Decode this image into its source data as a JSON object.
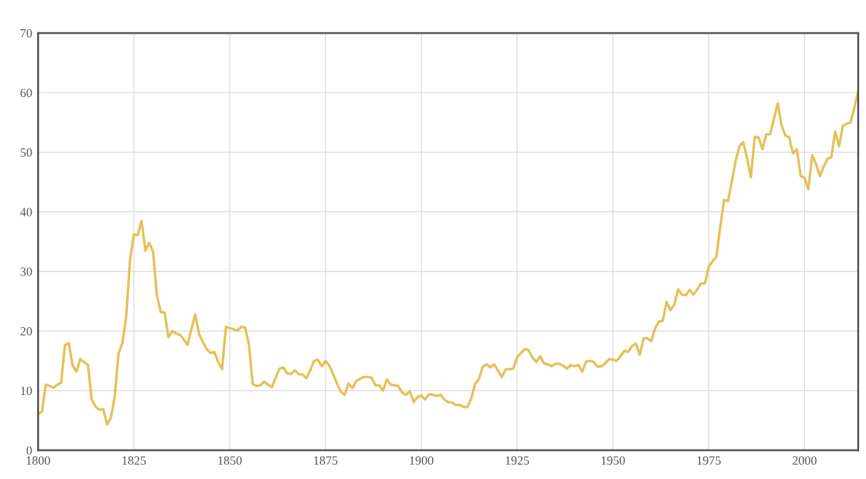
{
  "chart_data": {
    "type": "line",
    "x": [
      1800,
      1801,
      1802,
      1803,
      1804,
      1805,
      1806,
      1807,
      1808,
      1809,
      1810,
      1811,
      1812,
      1813,
      1814,
      1815,
      1816,
      1817,
      1818,
      1819,
      1820,
      1821,
      1822,
      1823,
      1824,
      1825,
      1826,
      1827,
      1828,
      1829,
      1830,
      1831,
      1832,
      1833,
      1834,
      1835,
      1836,
      1837,
      1838,
      1839,
      1840,
      1841,
      1842,
      1843,
      1844,
      1845,
      1846,
      1847,
      1848,
      1849,
      1850,
      1851,
      1852,
      1853,
      1854,
      1855,
      1856,
      1857,
      1858,
      1859,
      1860,
      1861,
      1862,
      1863,
      1864,
      1865,
      1866,
      1867,
      1868,
      1869,
      1870,
      1871,
      1872,
      1873,
      1874,
      1875,
      1876,
      1877,
      1878,
      1879,
      1880,
      1881,
      1882,
      1883,
      1884,
      1885,
      1886,
      1887,
      1888,
      1889,
      1890,
      1891,
      1892,
      1893,
      1894,
      1895,
      1896,
      1897,
      1898,
      1899,
      1900,
      1901,
      1902,
      1903,
      1904,
      1905,
      1906,
      1907,
      1908,
      1909,
      1910,
      1911,
      1912,
      1913,
      1914,
      1915,
      1916,
      1917,
      1918,
      1919,
      1920,
      1921,
      1922,
      1923,
      1924,
      1925,
      1926,
      1927,
      1928,
      1929,
      1930,
      1931,
      1932,
      1933,
      1934,
      1935,
      1936,
      1937,
      1938,
      1939,
      1940,
      1941,
      1942,
      1943,
      1944,
      1945,
      1946,
      1947,
      1948,
      1949,
      1950,
      1951,
      1952,
      1953,
      1954,
      1955,
      1956,
      1957,
      1958,
      1959,
      1960,
      1961,
      1962,
      1963,
      1964,
      1965,
      1966,
      1967,
      1968,
      1969,
      1970,
      1971,
      1972,
      1973,
      1974,
      1975,
      1976,
      1977,
      1978,
      1979,
      1980,
      1981,
      1982,
      1983,
      1984,
      1985,
      1986,
      1987,
      1988,
      1989,
      1990,
      1991,
      1992,
      1993,
      1994,
      1995,
      1996,
      1997,
      1998,
      1999,
      2000,
      2001,
      2002,
      2003,
      2004,
      2005,
      2006,
      2007,
      2008,
      2009,
      2010,
      2011,
      2012,
      2013,
      2014
    ],
    "series": [
      {
        "color": "#e6c15a",
        "values": [
          6,
          6.5,
          11,
          10.8,
          10.5,
          11,
          11.3,
          17.6,
          18,
          14.2,
          13.2,
          15.3,
          14.8,
          14.3,
          8.5,
          7.3,
          6.8,
          6.9,
          4.3,
          5.5,
          9,
          16.3,
          18,
          22.5,
          32,
          36.2,
          36.1,
          38.5,
          33.5,
          34.8,
          33.3,
          26,
          23.2,
          23.1,
          19,
          20,
          19.6,
          19.4,
          18.6,
          17.7,
          20.3,
          22.8,
          19.5,
          18.2,
          17,
          16.3,
          16.5,
          14.8,
          13.6,
          20.7,
          20.5,
          20.3,
          20.1,
          20.7,
          20.6,
          17.8,
          11.1,
          10.8,
          10.9,
          11.5,
          11,
          10.6,
          12.2,
          13.7,
          13.9,
          12.9,
          12.8,
          13.4,
          12.8,
          12.7,
          12.1,
          13.4,
          15,
          15.2,
          14.1,
          15,
          14.2,
          12.7,
          11.2,
          9.8,
          9.3,
          11.2,
          10.4,
          11.6,
          12,
          12.3,
          12.3,
          12.2,
          10.9,
          10.9,
          10,
          11.9,
          11,
          10.9,
          10.8,
          9.7,
          9.3,
          9.9,
          8.1,
          8.9,
          9.2,
          8.5,
          9.4,
          9.3,
          9.1,
          9.3,
          8.5,
          8.1,
          8,
          7.6,
          7.6,
          7.3,
          7.2,
          8.6,
          11.1,
          11.9,
          14,
          14.4,
          13.9,
          14.4,
          13.4,
          12.3,
          13.6,
          13.6,
          13.7,
          15.6,
          16.3,
          17,
          16.8,
          15.6,
          14.8,
          15.8,
          14.6,
          14.4,
          14.1,
          14.5,
          14.5,
          14.2,
          13.7,
          14.3,
          14.1,
          14.3,
          13.2,
          14.9,
          15,
          14.8,
          14,
          14.1,
          14.6,
          15.3,
          15.2,
          15,
          15.8,
          16.7,
          16.5,
          17.5,
          17.9,
          16,
          18.8,
          18.8,
          18.3,
          20.5,
          21.6,
          21.7,
          24.9,
          23.5,
          24.4,
          27,
          26.1,
          26,
          26.9,
          26.1,
          27,
          28,
          28,
          30.8,
          31.7,
          32.5,
          37.5,
          42,
          41.8,
          45,
          48.5,
          51,
          51.7,
          49,
          45.8,
          52.6,
          52.5,
          50.5,
          53,
          53,
          55.6,
          58.2,
          54.5,
          52.8,
          52.5,
          49.8,
          50.5,
          46,
          45.7,
          43.8,
          49.5,
          48,
          46,
          47.6,
          48.9,
          49.2,
          53.5,
          51,
          54.4,
          54.8,
          55,
          57.5,
          60.3
        ]
      }
    ],
    "xlim": [
      1800,
      2014
    ],
    "xticks": [
      1800,
      1825,
      1850,
      1875,
      1900,
      1925,
      1950,
      1975,
      2000
    ],
    "ylim": [
      0,
      70
    ],
    "yticks": [
      0,
      10,
      20,
      30,
      40,
      50,
      60,
      70
    ],
    "grid": true,
    "marker": "none",
    "line_style": "solid"
  }
}
